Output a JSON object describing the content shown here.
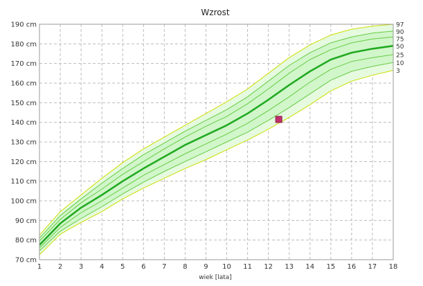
{
  "chart_data": {
    "type": "line",
    "title": "Wzrost",
    "xlabel": "wiek [lata]",
    "ylabel": "",
    "xlim": [
      1,
      18
    ],
    "ylim": [
      70,
      190
    ],
    "x_ticks": [
      "1",
      "2",
      "3",
      "4",
      "5",
      "6",
      "7",
      "8",
      "9",
      "10",
      "11",
      "12",
      "13",
      "14",
      "15",
      "16",
      "17",
      "18"
    ],
    "y_ticks": [
      "70 cm",
      "80 cm",
      "90 cm",
      "100 cm",
      "110 cm",
      "120 cm",
      "130 cm",
      "140 cm",
      "150 cm",
      "160 cm",
      "170 cm",
      "180 cm",
      "190 cm"
    ],
    "grid": true,
    "colors": {
      "median_line": "#22aa22",
      "inner_lines": "#66cc44",
      "outer_lines": "#ccdd00",
      "band_fill": "#ccf5c4",
      "grid": "#bbbbbb",
      "marker": "#c0306a"
    },
    "x": [
      1,
      2,
      3,
      4,
      5,
      6,
      7,
      8,
      9,
      10,
      11,
      12,
      13,
      14,
      15,
      16,
      17,
      18
    ],
    "series": [
      {
        "name": "3",
        "values": [
          72.5,
          83,
          89,
          94.5,
          101,
          106.5,
          111.5,
          116.5,
          121,
          126,
          131,
          136.5,
          142.5,
          149,
          156,
          161,
          164,
          166.5
        ]
      },
      {
        "name": "10",
        "values": [
          74.5,
          84.5,
          91,
          97,
          103.5,
          109.5,
          115,
          120,
          125,
          130,
          135,
          141,
          147.5,
          154.5,
          161.5,
          166,
          168.5,
          170.5
        ]
      },
      {
        "name": "25",
        "values": [
          76,
          86.5,
          94,
          100,
          106.5,
          113,
          118.5,
          124,
          129,
          134,
          139.5,
          146,
          153,
          160.5,
          167,
          171,
          173,
          174.5
        ]
      },
      {
        "name": "50",
        "values": [
          77.5,
          88.5,
          96.5,
          103,
          110,
          116.5,
          122.5,
          128.5,
          133.5,
          138.5,
          144.5,
          151.5,
          159,
          166,
          172,
          175.5,
          177.5,
          179
        ]
      },
      {
        "name": "75",
        "values": [
          79.5,
          90.5,
          99,
          106,
          113.5,
          120,
          126.5,
          132.5,
          138,
          143,
          149.5,
          157,
          165,
          172,
          177,
          180.5,
          182.5,
          183.5
        ]
      },
      {
        "name": "90",
        "values": [
          81,
          92.5,
          101,
          109,
          116.5,
          123.5,
          129.5,
          135.5,
          141,
          146.5,
          153,
          161,
          169,
          175.5,
          180.5,
          183.5,
          185.5,
          186.5
        ]
      },
      {
        "name": "97",
        "values": [
          82.5,
          94.5,
          103,
          111.5,
          119.5,
          126.5,
          132.5,
          138.5,
          144.5,
          150.5,
          157,
          165,
          173,
          179.5,
          184.5,
          187.5,
          189,
          190
        ]
      }
    ],
    "point": {
      "x": 12.5,
      "y": 141.5
    }
  }
}
